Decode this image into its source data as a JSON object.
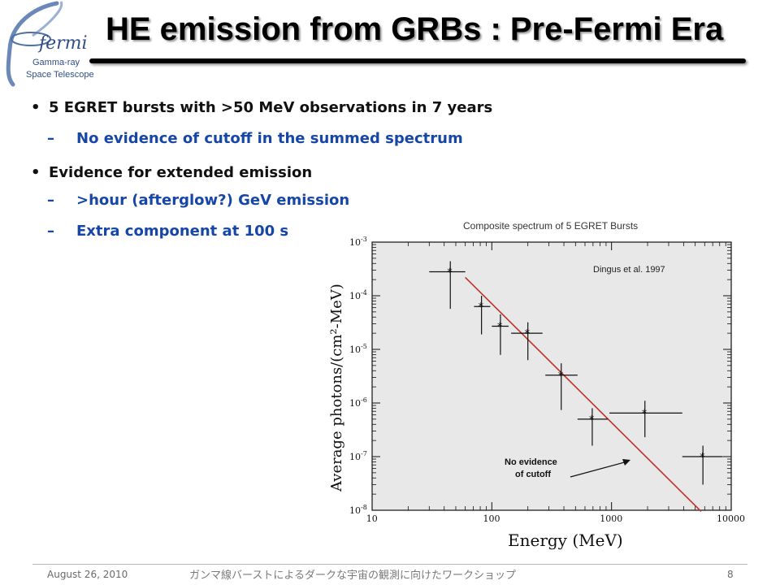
{
  "slide": {
    "title": "HE emission from GRBs : Pre-Fermi Era",
    "logo": {
      "name": "fermi",
      "subtitle_line1": "Gamma-ray",
      "subtitle_line2": "Space Telescope"
    },
    "bullets": [
      {
        "text": "5 EGRET bursts with >50 MeV observations in 7 years",
        "sub": [
          "No evidence of cutoff in the summed spectrum"
        ]
      },
      {
        "text": "Evidence for extended emission",
        "sub": [
          ">hour (afterglow?) GeV emission",
          "Extra component at 100 s"
        ]
      }
    ],
    "bullet_marker": "•",
    "dash_marker": "–",
    "footer": {
      "date": "August 26, 2010",
      "center": "ガンマ線バーストによるダークな宇宙の観測に向けたワークショップ",
      "page": "8"
    },
    "colors": {
      "sub_bullet": "#1747a6",
      "fit_line": "#c0302a",
      "bullet": "#111111"
    }
  },
  "chart_data": {
    "type": "scatter",
    "title": "Composite spectrum of 5 EGRET Bursts",
    "xlabel": "Energy (MeV)",
    "ylabel": "Average photons/(cm²-MeV)",
    "xscale": "log",
    "yscale": "log",
    "xlim": [
      10,
      10000
    ],
    "ylim": [
      1e-08,
      0.001
    ],
    "xticks": [
      "10",
      "100",
      "1000",
      "10000"
    ],
    "yticks": [
      {
        "value": 1e-08,
        "base": "10",
        "exp": "-8"
      },
      {
        "value": 1e-07,
        "base": "10",
        "exp": "-7"
      },
      {
        "value": 1e-06,
        "base": "10",
        "exp": "-6"
      },
      {
        "value": 1e-05,
        "base": "10",
        "exp": "-5"
      },
      {
        "value": 0.0001,
        "base": "10",
        "exp": "-4"
      },
      {
        "value": 0.001,
        "base": "10",
        "exp": "-3"
      }
    ],
    "points": [
      {
        "x": 45,
        "y": 0.00028,
        "xlo": 30,
        "xhi": 60,
        "ylo": 5.7e-05,
        "yhi": 0.00044
      },
      {
        "x": 82,
        "y": 6.3e-05,
        "xlo": 71,
        "xhi": 97,
        "ylo": 1.9e-05,
        "yhi": 0.0001
      },
      {
        "x": 118,
        "y": 2.7e-05,
        "xlo": 100,
        "xhi": 138,
        "ylo": 7.9e-06,
        "yhi": 4.5e-05
      },
      {
        "x": 200,
        "y": 2e-05,
        "xlo": 145,
        "xhi": 265,
        "ylo": 6.3e-06,
        "yhi": 3.2e-05
      },
      {
        "x": 380,
        "y": 3.3e-06,
        "xlo": 280,
        "xhi": 520,
        "ylo": 7.4e-07,
        "yhi": 5.5e-06
      },
      {
        "x": 690,
        "y": 5e-07,
        "xlo": 520,
        "xhi": 930,
        "ylo": 1.6e-07,
        "yhi": 8e-07
      },
      {
        "x": 1900,
        "y": 6.5e-07,
        "xlo": 960,
        "xhi": 3900,
        "ylo": 2.3e-07,
        "yhi": 1.1e-06
      },
      {
        "x": 5800,
        "y": 1e-07,
        "xlo": 3900,
        "xhi": 8500,
        "ylo": 3e-08,
        "yhi": 1.6e-07
      }
    ],
    "fit_line": {
      "x": [
        60,
        5600
      ],
      "y": [
        0.00022,
        9.5e-09
      ]
    },
    "annotations": [
      {
        "text": "Dingus et al. 1997"
      },
      {
        "text": "No evidence of cutoff",
        "line1": "No evidence",
        "line2": "of cutoff"
      }
    ],
    "legend": "none",
    "grid": false
  }
}
